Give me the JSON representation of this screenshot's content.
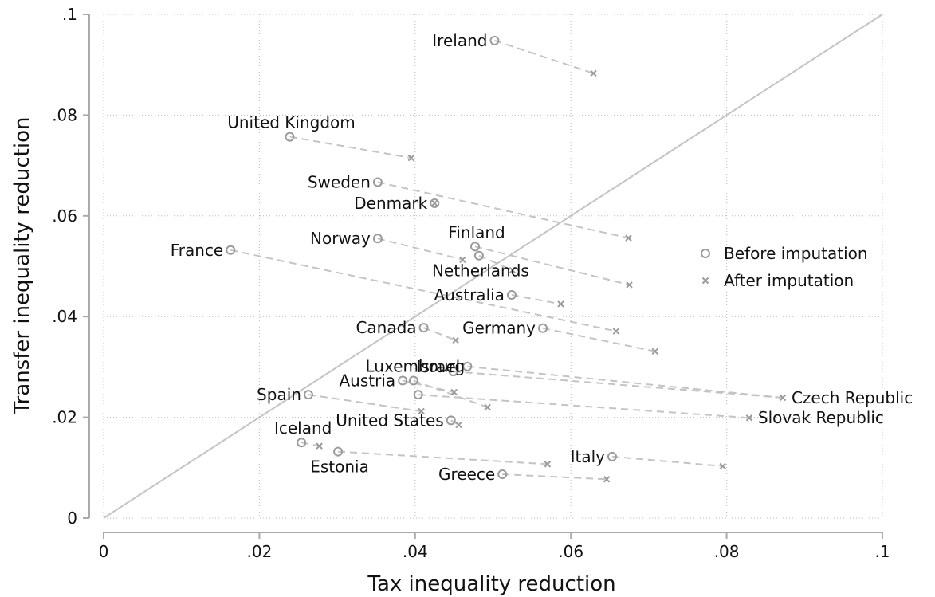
{
  "chart_data": {
    "type": "scatter",
    "xlabel": "Tax inequality reduction",
    "ylabel": "Transfer inequality reduction",
    "xlim": [
      0,
      0.1
    ],
    "ylim": [
      0,
      0.1
    ],
    "x_ticks": [
      {
        "value": 0,
        "label": "0"
      },
      {
        "value": 0.02,
        "label": ".02"
      },
      {
        "value": 0.04,
        "label": ".04"
      },
      {
        "value": 0.06,
        "label": ".06"
      },
      {
        "value": 0.08,
        "label": ".08"
      },
      {
        "value": 0.1,
        "label": ".1"
      }
    ],
    "y_ticks": [
      {
        "value": 0,
        "label": "0"
      },
      {
        "value": 0.02,
        "label": ".02"
      },
      {
        "value": 0.04,
        "label": ".04"
      },
      {
        "value": 0.06,
        "label": ".06"
      },
      {
        "value": 0.08,
        "label": ".08"
      },
      {
        "value": 0.1,
        "label": ".1"
      }
    ],
    "grid": true,
    "reference_line": "45-degree",
    "legend_placement": "right",
    "legend": [
      {
        "name": "Before imputation",
        "marker": "circle"
      },
      {
        "name": "After imputation",
        "marker": "x"
      }
    ],
    "colors": {
      "marker": "#9b9b9b",
      "connector": "#c4c4c4",
      "diagonal": "#c4c4c4",
      "axis": "#aaaaaa",
      "grid": "#bbbbbb"
    },
    "countries": [
      {
        "name": "Ireland",
        "before": [
          0.0502,
          0.0948
        ],
        "after": [
          0.0629,
          0.0883
        ],
        "label_side": "left"
      },
      {
        "name": "United Kingdom",
        "before": [
          0.0239,
          0.0757
        ],
        "after": [
          0.0395,
          0.0715
        ],
        "label_side": "above"
      },
      {
        "name": "Sweden",
        "before": [
          0.0352,
          0.0667
        ],
        "after": [
          0.0674,
          0.0556
        ],
        "label_side": "left"
      },
      {
        "name": "Denmark",
        "before": [
          0.0425,
          0.0625
        ],
        "after": [
          0.0425,
          0.0625
        ],
        "label_side": "left"
      },
      {
        "name": "Norway",
        "before": [
          0.0352,
          0.0555
        ],
        "after": [
          0.0461,
          0.0513
        ],
        "label_side": "left"
      },
      {
        "name": "Finland",
        "before": [
          0.0477,
          0.0539
        ],
        "after": [
          0.0675,
          0.0463
        ],
        "label_side": "above"
      },
      {
        "name": "France",
        "before": [
          0.0163,
          0.0532
        ],
        "after": [
          0.0658,
          0.0371
        ],
        "label_side": "left"
      },
      {
        "name": "Netherlands",
        "before": [
          0.0482,
          0.0521
        ],
        "after": [
          0.0525,
          0.0492
        ],
        "label_side": "below"
      },
      {
        "name": "Australia",
        "before": [
          0.0524,
          0.0443
        ],
        "after": [
          0.0587,
          0.0425
        ],
        "label_side": "left"
      },
      {
        "name": "Canada",
        "before": [
          0.0411,
          0.0378
        ],
        "after": [
          0.0452,
          0.0353
        ],
        "label_side": "left"
      },
      {
        "name": "Germany",
        "before": [
          0.0564,
          0.0377
        ],
        "after": [
          0.0708,
          0.0331
        ],
        "label_side": "left"
      },
      {
        "name": "Israel",
        "before": [
          0.0467,
          0.0301
        ],
        "after": [
          0.0872,
          0.0239
        ],
        "label_side": "left"
      },
      {
        "name": "Czech Republic",
        "before": [
          0.0449,
          0.0291
        ],
        "after": [
          0.0872,
          0.0239
        ],
        "label_side": "right"
      },
      {
        "name": "Luxembourg",
        "before": [
          0.0398,
          0.0273
        ],
        "after": [
          0.0493,
          0.022
        ],
        "label_side": "above"
      },
      {
        "name": "Austria",
        "before": [
          0.0384,
          0.0273
        ],
        "after": [
          0.045,
          0.025
        ],
        "label_side": "left"
      },
      {
        "name": "Slovak Republic",
        "before": [
          0.0404,
          0.0245
        ],
        "after": [
          0.0829,
          0.0199
        ],
        "label_side": "right"
      },
      {
        "name": "Spain",
        "before": [
          0.0263,
          0.0245
        ],
        "after": [
          0.0408,
          0.0212
        ],
        "label_side": "left"
      },
      {
        "name": "United States",
        "before": [
          0.0446,
          0.0194
        ],
        "after": [
          0.0456,
          0.0185
        ],
        "label_side": "left"
      },
      {
        "name": "Iceland",
        "before": [
          0.0254,
          0.015
        ],
        "after": [
          0.0277,
          0.0143
        ],
        "label_side": "above"
      },
      {
        "name": "Estonia",
        "before": [
          0.0301,
          0.0132
        ],
        "after": [
          0.057,
          0.0107
        ],
        "label_side": "below"
      },
      {
        "name": "Italy",
        "before": [
          0.0653,
          0.0122
        ],
        "after": [
          0.0795,
          0.0103
        ],
        "label_side": "left"
      },
      {
        "name": "Greece",
        "before": [
          0.0512,
          0.0087
        ],
        "after": [
          0.0646,
          0.0077
        ],
        "label_side": "left"
      }
    ]
  }
}
